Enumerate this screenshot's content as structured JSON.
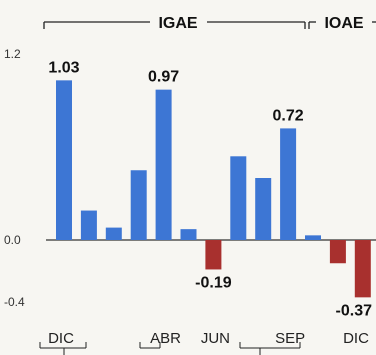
{
  "chart_data": {
    "type": "bar",
    "title": "",
    "xlabel": "",
    "ylabel": "",
    "ylim": [
      -0.4,
      1.2
    ],
    "yticks": [
      "1.2",
      "0.0",
      "-0.4"
    ],
    "groups": [
      {
        "label": "IGAE",
        "from": 0,
        "to": 10
      },
      {
        "label": "IOAE",
        "from": 11,
        "to": 12
      }
    ],
    "month_labels": [
      {
        "label": "DIC",
        "index": 0
      },
      {
        "label": "ABR",
        "index": 4
      },
      {
        "label": "JUN",
        "index": 6
      },
      {
        "label": "SEP",
        "index": 9
      },
      {
        "label": "DIC",
        "index": 12
      }
    ],
    "series": [
      {
        "values": [
          1.03,
          0.19,
          0.08,
          0.45,
          0.97,
          0.07,
          -0.19,
          0.54,
          0.4,
          0.72,
          0.03,
          -0.15,
          -0.37
        ]
      }
    ],
    "data_labels": [
      {
        "index": 0,
        "text": "1.03"
      },
      {
        "index": 4,
        "text": "0.97"
      },
      {
        "index": 6,
        "text": "-0.19"
      },
      {
        "index": 9,
        "text": "0.72"
      },
      {
        "index": 12,
        "text": "-0.37"
      }
    ],
    "colors": {
      "positive": "#3d76d4",
      "negative": "#a8302e",
      "axis": "#222222"
    }
  }
}
